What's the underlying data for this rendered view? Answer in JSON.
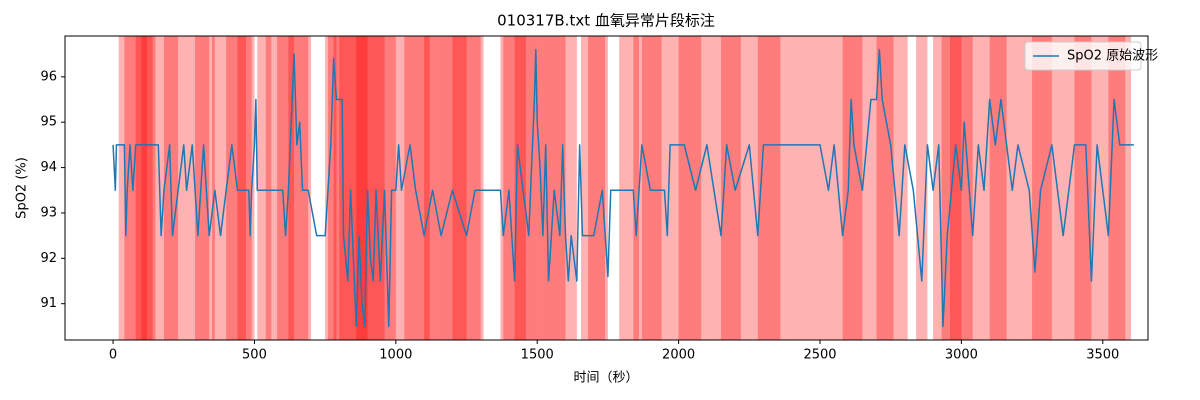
{
  "chart_data": {
    "type": "line",
    "title": "010317B.txt 血氧异常片段标注",
    "xlabel": "时间（秒）",
    "ylabel": "SpO2 (%)",
    "x": [
      0,
      8,
      12,
      40,
      45,
      50,
      60,
      70,
      80,
      100,
      160,
      170,
      180,
      200,
      210,
      230,
      250,
      260,
      280,
      300,
      320,
      340,
      360,
      380,
      400,
      420,
      440,
      480,
      485,
      490,
      500,
      505,
      510,
      560,
      600,
      610,
      620,
      630,
      640,
      650,
      660,
      670,
      690,
      720,
      750,
      760,
      770,
      780,
      790,
      810,
      815,
      830,
      840,
      850,
      860,
      870,
      880,
      890,
      900,
      910,
      920,
      930,
      945,
      960,
      975,
      985,
      1000,
      1010,
      1020,
      1050,
      1070,
      1100,
      1130,
      1160,
      1200,
      1250,
      1280,
      1320,
      1370,
      1380,
      1400,
      1420,
      1430,
      1450,
      1470,
      1490,
      1495,
      1500,
      1510,
      1520,
      1530,
      1540,
      1560,
      1580,
      1590,
      1600,
      1610,
      1620,
      1640,
      1650,
      1660,
      1700,
      1730,
      1750,
      1760,
      1800,
      1840,
      1850,
      1870,
      1900,
      1950,
      1960,
      1970,
      2020,
      2060,
      2100,
      2150,
      2170,
      2200,
      2250,
      2280,
      2300,
      2400,
      2500,
      2530,
      2550,
      2580,
      2600,
      2610,
      2620,
      2650,
      2680,
      2700,
      2710,
      2720,
      2750,
      2780,
      2800,
      2830,
      2860,
      2880,
      2900,
      2920,
      2935,
      2950,
      2980,
      3000,
      3010,
      3040,
      3060,
      3080,
      3100,
      3120,
      3140,
      3160,
      3180,
      3200,
      3240,
      3260,
      3280,
      3320,
      3360,
      3400,
      3440,
      3460,
      3480,
      3520,
      3540,
      3560,
      3610
    ],
    "series": [
      {
        "name": "SpO2 原始波形",
        "color": "#1f77b4",
        "values": [
          94.5,
          93.5,
          94.5,
          94.5,
          92.5,
          93.5,
          94.5,
          93.5,
          94.5,
          94.5,
          94.5,
          92.5,
          93.5,
          94.5,
          92.5,
          93.5,
          94.5,
          93.5,
          94.5,
          92.5,
          94.5,
          92.5,
          93.5,
          92.5,
          93.5,
          94.5,
          93.5,
          93.5,
          92.5,
          93.5,
          94.5,
          95.5,
          93.5,
          93.5,
          93.5,
          92.5,
          93.5,
          95,
          96.5,
          94.5,
          95,
          93.5,
          93.5,
          92.5,
          92.5,
          93.5,
          94.5,
          96.4,
          95.5,
          95.5,
          92.5,
          91.5,
          93.5,
          92,
          90.5,
          92.5,
          91,
          90.5,
          93.5,
          92,
          91.5,
          93.5,
          91.5,
          93.5,
          90.5,
          93.5,
          93.5,
          94.5,
          93.5,
          94.5,
          93.5,
          92.5,
          93.5,
          92.5,
          93.5,
          92.5,
          93.5,
          93.5,
          93.5,
          92.5,
          93.5,
          91.5,
          94.5,
          93.5,
          92.5,
          95.5,
          96.6,
          95,
          94,
          92.5,
          94.5,
          91.5,
          93.5,
          92.5,
          94.5,
          92.5,
          91.5,
          92.5,
          91.5,
          94.5,
          92.5,
          92.5,
          93.5,
          91.6,
          93.5,
          93.5,
          93.5,
          92.5,
          94.5,
          93.5,
          93.5,
          92.5,
          94.5,
          94.5,
          93.5,
          94.5,
          92.5,
          94.5,
          93.5,
          94.5,
          92.5,
          94.5,
          94.5,
          94.5,
          93.5,
          94.5,
          92.5,
          93.5,
          95.5,
          94.5,
          93.5,
          95.5,
          95.5,
          96.6,
          95.5,
          94.5,
          92.5,
          94.5,
          93.5,
          91.5,
          94.5,
          93.5,
          94.5,
          90.5,
          92.5,
          94.5,
          93.5,
          95,
          92.5,
          94.5,
          93.5,
          95.5,
          94.5,
          95.5,
          94.5,
          93.5,
          94.5,
          93.5,
          91.7,
          93.5,
          94.5,
          92.5,
          94.5,
          94.5,
          91.5,
          94.5,
          92.5,
          95.5,
          94.5,
          94.5
        ]
      }
    ],
    "spans": [
      [
        20,
        60
      ],
      [
        40,
        150
      ],
      [
        60,
        140
      ],
      [
        80,
        120
      ],
      [
        100,
        150
      ],
      [
        150,
        260
      ],
      [
        180,
        230
      ],
      [
        260,
        360
      ],
      [
        290,
        340
      ],
      [
        350,
        500
      ],
      [
        400,
        470
      ],
      [
        440,
        490
      ],
      [
        510,
        560
      ],
      [
        540,
        700
      ],
      [
        580,
        640
      ],
      [
        620,
        690
      ],
      [
        750,
        790
      ],
      [
        760,
        1000
      ],
      [
        780,
        900
      ],
      [
        800,
        960
      ],
      [
        860,
        1000
      ],
      [
        1000,
        1150
      ],
      [
        1030,
        1120
      ],
      [
        1100,
        1310
      ],
      [
        1150,
        1250
      ],
      [
        1200,
        1300
      ],
      [
        1370,
        1500
      ],
      [
        1380,
        1460
      ],
      [
        1420,
        1540
      ],
      [
        1500,
        1640
      ],
      [
        1540,
        1600
      ],
      [
        1655,
        1750
      ],
      [
        1680,
        1740
      ],
      [
        1790,
        1860
      ],
      [
        1840,
        1960
      ],
      [
        1870,
        1940
      ],
      [
        1960,
        2100
      ],
      [
        2000,
        2080
      ],
      [
        2100,
        2250
      ],
      [
        2150,
        2220
      ],
      [
        2250,
        2400
      ],
      [
        2280,
        2360
      ],
      [
        2400,
        2560
      ],
      [
        2560,
        2680
      ],
      [
        2580,
        2650
      ],
      [
        2680,
        2810
      ],
      [
        2700,
        2760
      ],
      [
        2840,
        2880
      ],
      [
        2900,
        3000
      ],
      [
        2930,
        3060
      ],
      [
        2960,
        3040
      ],
      [
        3060,
        3200
      ],
      [
        3100,
        3160
      ],
      [
        3200,
        3350
      ],
      [
        3250,
        3320
      ],
      [
        3350,
        3480
      ],
      [
        3400,
        3460
      ],
      [
        3480,
        3600
      ],
      [
        3520,
        3580
      ]
    ],
    "span_color": "#ff0000",
    "xlim": [
      -170,
      3660
    ],
    "ylim": [
      90.2,
      96.9
    ],
    "xticks": [
      0,
      500,
      1000,
      1500,
      2000,
      2500,
      3000,
      3500
    ],
    "yticks": [
      91,
      92,
      93,
      94,
      95,
      96
    ],
    "legend": "upper right"
  }
}
